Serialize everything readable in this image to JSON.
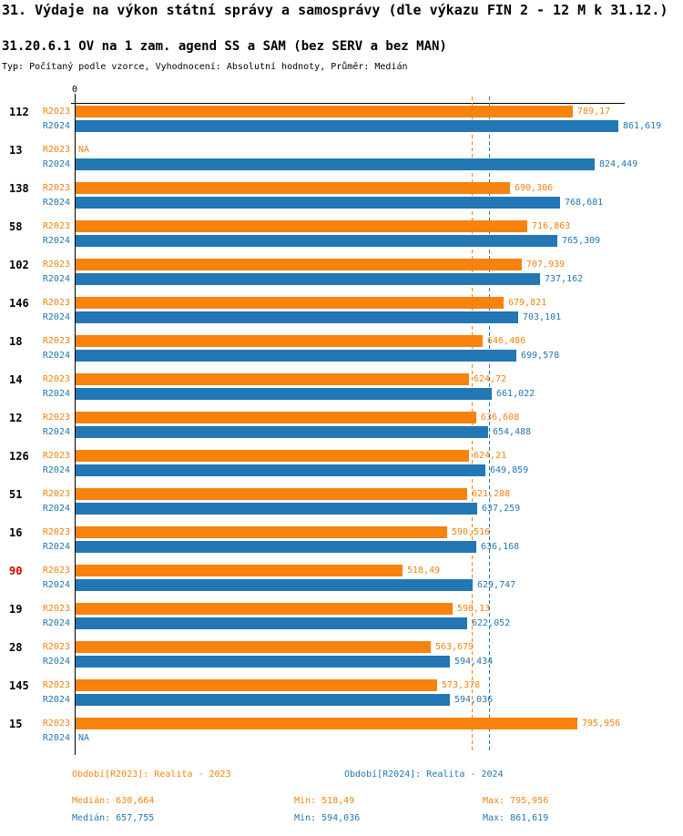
{
  "title": "31. Výdaje na výkon státní správy a samosprávy (dle výkazu FIN 2 - 12 M k 31.12.)",
  "subtitle": "31.20.6.1 OV na 1 zam. agend SS a SAM (bez SERV a bez MAN)",
  "meta": "Typ: Počítaný podle vzorce, Vyhodnocení: Absolutní hodnoty, Průměr: Medián",
  "axis": {
    "zero_label": "0"
  },
  "colors": {
    "r2023": "#F8820E",
    "r2024": "#2277B4",
    "highlight": "#D40000",
    "axis": "#000000"
  },
  "na_text": "NA",
  "chart_data": {
    "type": "bar",
    "orientation": "horizontal",
    "title": "31.20.6.1 OV na 1 zam. agend SS a SAM (bez SERV a bez MAN)",
    "xlim": [
      0,
      861.619
    ],
    "grid": false,
    "categories": [
      "112",
      "13",
      "138",
      "58",
      "102",
      "146",
      "18",
      "14",
      "12",
      "126",
      "51",
      "16",
      "90",
      "19",
      "28",
      "145",
      "15"
    ],
    "highlighted_categories": [
      "90"
    ],
    "series": [
      {
        "name": "R2023",
        "values": [
          789.17,
          null,
          690.306,
          716.863,
          707.939,
          679.821,
          646.486,
          624.72,
          636.608,
          624.21,
          621.288,
          590.516,
          518.49,
          598.13,
          563.679,
          573.378,
          795.956
        ],
        "value_labels": [
          "789,17",
          "NA",
          "690,306",
          "716,863",
          "707,939",
          "679,821",
          "646,486",
          "624,72",
          "636,608",
          "624,21",
          "621,288",
          "590,516",
          "518,49",
          "598,13",
          "563,679",
          "573,378",
          "795,956"
        ],
        "median": 630.664,
        "min": 518.49,
        "max": 795.956
      },
      {
        "name": "R2024",
        "values": [
          861.619,
          824.449,
          768.681,
          765.309,
          737.162,
          703.101,
          699.578,
          661.022,
          654.488,
          649.859,
          637.259,
          636.168,
          629.747,
          622.052,
          594.434,
          594.036,
          null
        ],
        "value_labels": [
          "861,619",
          "824,449",
          "768,681",
          "765,309",
          "737,162",
          "703,101",
          "699,578",
          "661,022",
          "654,488",
          "649,859",
          "637,259",
          "636,168",
          "629,747",
          "622,052",
          "594,434",
          "594,036",
          "NA"
        ],
        "median": 657.755,
        "min": 594.036,
        "max": 861.619
      }
    ],
    "median_lines": [
      {
        "series": "R2023",
        "value": 630.664
      },
      {
        "series": "R2024",
        "value": 657.755
      }
    ]
  },
  "legend": {
    "r2023_label": "Období[R2023]: Realita - 2023",
    "r2024_label": "Období[R2024]: Realita - 2024"
  },
  "stats": {
    "r2023": {
      "median": "Medián: 630,664",
      "min": "Min: 518,49",
      "max": "Max: 795,956"
    },
    "r2024": {
      "median": "Medián: 657,755",
      "min": "Min: 594,036",
      "max": "Max: 861,619"
    }
  }
}
